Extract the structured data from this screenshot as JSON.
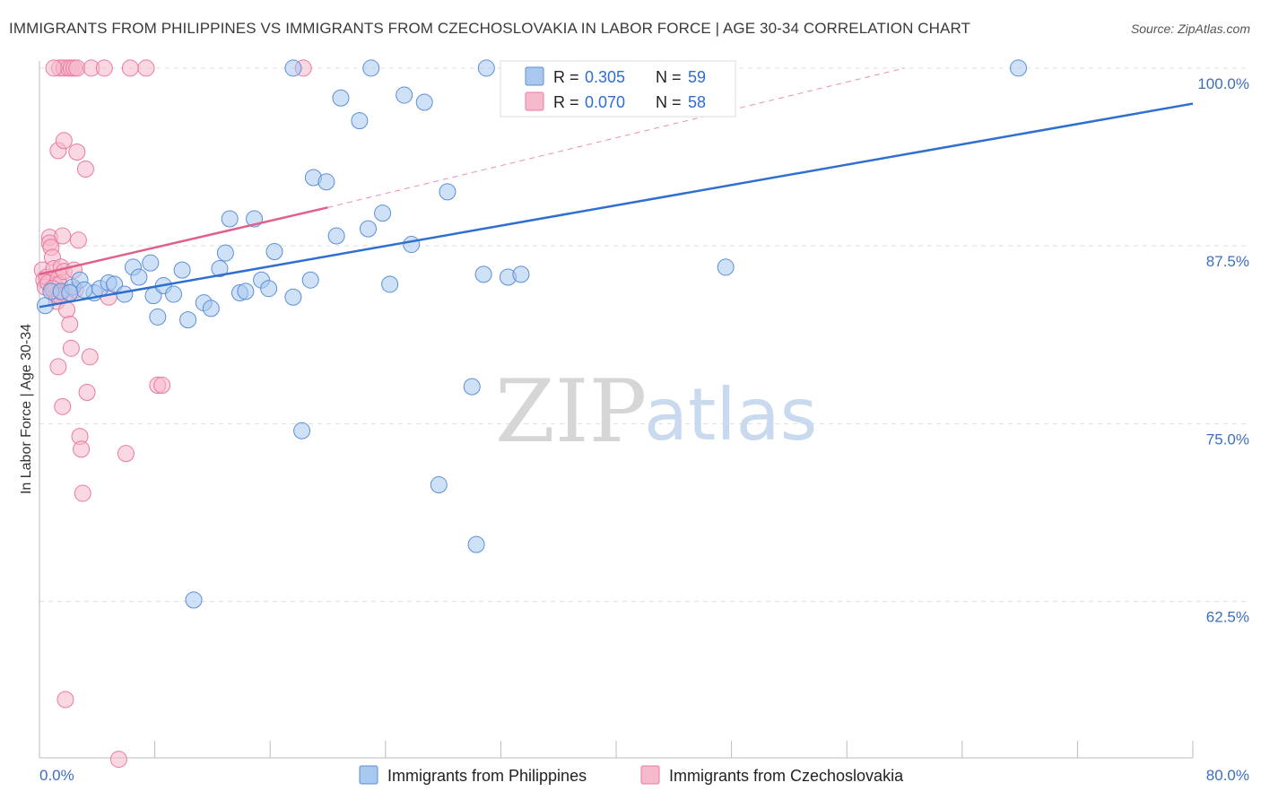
{
  "title": "IMMIGRANTS FROM PHILIPPINES VS IMMIGRANTS FROM CZECHOSLOVAKIA IN LABOR FORCE | AGE 30-34 CORRELATION CHART",
  "source": "Source: ZipAtlas.com",
  "watermark": {
    "zip": "ZIP",
    "atlas": "atlas"
  },
  "legend": {
    "series1": {
      "r_label": "R = ",
      "r_value": "0.305",
      "n_label": "N = ",
      "n_value": "59"
    },
    "series2": {
      "r_label": "R = ",
      "r_value": "0.070",
      "n_label": "N = ",
      "n_value": "58"
    }
  },
  "colors": {
    "blue_fill": "#a8c8f0",
    "blue_stroke": "#5b8fd6",
    "blue_line": "#2e6fd0",
    "pink_fill": "#f6b8cb",
    "pink_stroke": "#e97aa0",
    "pink_line": "#e0608a",
    "grid": "#dddddd",
    "axis": "#bbbbbb"
  },
  "chart_data": {
    "type": "scatter",
    "title": "IMMIGRANTS FROM PHILIPPINES VS IMMIGRANTS FROM CZECHOSLOVAKIA IN LABOR FORCE | AGE 30-34 CORRELATION CHART",
    "xlabel": "",
    "ylabel": "In Labor Force | Age 30-34",
    "xlim": [
      0,
      80
    ],
    "ylim": [
      51.5,
      100.5
    ],
    "x_tick_labels": [
      "0.0%",
      "80.0%"
    ],
    "y_ticks": [
      62.5,
      75.0,
      87.5,
      100.0
    ],
    "y_tick_labels": [
      "62.5%",
      "75.0%",
      "87.5%",
      "100.0%"
    ],
    "series": [
      {
        "name": "Immigrants from Philippines",
        "trend": {
          "x": [
            0,
            80
          ],
          "y": [
            83.2,
            97.5
          ],
          "style": "solid"
        },
        "points": [
          [
            0.4,
            83.3
          ],
          [
            0.8,
            84.3
          ],
          [
            1.5,
            84.3
          ],
          [
            2.3,
            84.6
          ],
          [
            2.8,
            85.1
          ],
          [
            3.8,
            84.2
          ],
          [
            4.2,
            84.5
          ],
          [
            4.8,
            84.9
          ],
          [
            5.2,
            84.8
          ],
          [
            5.9,
            84.1
          ],
          [
            6.5,
            86.0
          ],
          [
            6.9,
            85.3
          ],
          [
            7.7,
            86.3
          ],
          [
            7.9,
            84.0
          ],
          [
            8.2,
            82.5
          ],
          [
            8.6,
            84.7
          ],
          [
            9.3,
            84.1
          ],
          [
            9.9,
            85.8
          ],
          [
            10.3,
            82.3
          ],
          [
            11.4,
            83.5
          ],
          [
            11.9,
            83.1
          ],
          [
            12.5,
            85.9
          ],
          [
            12.9,
            87.0
          ],
          [
            13.2,
            89.4
          ],
          [
            13.9,
            84.2
          ],
          [
            14.3,
            84.3
          ],
          [
            14.9,
            89.4
          ],
          [
            15.4,
            85.1
          ],
          [
            15.9,
            84.5
          ],
          [
            16.3,
            87.1
          ],
          [
            17.6,
            83.9
          ],
          [
            18.8,
            85.1
          ],
          [
            19.0,
            92.3
          ],
          [
            19.9,
            92.0
          ],
          [
            20.6,
            88.2
          ],
          [
            20.9,
            97.9
          ],
          [
            22.2,
            96.3
          ],
          [
            22.8,
            88.7
          ],
          [
            23.8,
            89.8
          ],
          [
            24.3,
            84.8
          ],
          [
            25.3,
            98.1
          ],
          [
            25.8,
            87.6
          ],
          [
            26.7,
            97.6
          ],
          [
            28.3,
            91.3
          ],
          [
            30.8,
            85.5
          ],
          [
            32.5,
            85.3
          ],
          [
            33.4,
            85.5
          ],
          [
            47.6,
            86.0
          ],
          [
            17.6,
            100.0
          ],
          [
            23.0,
            100.0
          ],
          [
            31.0,
            100.0
          ],
          [
            67.9,
            100.0
          ],
          [
            18.2,
            74.5
          ],
          [
            27.7,
            70.7
          ],
          [
            30.0,
            77.6
          ],
          [
            30.3,
            66.5
          ],
          [
            10.7,
            62.6
          ],
          [
            3.1,
            84.4
          ],
          [
            2.1,
            84.2
          ]
        ]
      },
      {
        "name": "Immigrants from Czechoslovakia",
        "trend": {
          "x": [
            0,
            20.0
          ],
          "y": [
            85.5,
            90.2
          ],
          "style": "solid",
          "extension": {
            "x": [
              20.0,
              60.0
            ],
            "y": [
              90.2,
              100.0
            ],
            "style": "dashed"
          }
        },
        "points": [
          [
            0.2,
            85.8
          ],
          [
            0.3,
            85.1
          ],
          [
            0.4,
            84.6
          ],
          [
            0.5,
            85.3
          ],
          [
            0.6,
            84.9
          ],
          [
            0.7,
            88.1
          ],
          [
            0.7,
            87.7
          ],
          [
            0.8,
            87.4
          ],
          [
            0.9,
            86.7
          ],
          [
            1.0,
            85.9
          ],
          [
            1.0,
            84.3
          ],
          [
            1.1,
            84.7
          ],
          [
            1.2,
            84.0
          ],
          [
            1.2,
            83.6
          ],
          [
            1.3,
            85.2
          ],
          [
            1.4,
            84.8
          ],
          [
            1.5,
            84.2
          ],
          [
            1.5,
            86.0
          ],
          [
            1.6,
            88.2
          ],
          [
            1.7,
            85.7
          ],
          [
            1.8,
            84.1
          ],
          [
            1.9,
            83.0
          ],
          [
            2.1,
            82.0
          ],
          [
            2.2,
            80.3
          ],
          [
            2.4,
            85.8
          ],
          [
            2.5,
            84.4
          ],
          [
            2.7,
            87.9
          ],
          [
            2.8,
            74.1
          ],
          [
            2.9,
            73.2
          ],
          [
            3.0,
            70.1
          ],
          [
            1.3,
            79.0
          ],
          [
            1.6,
            76.2
          ],
          [
            3.3,
            77.2
          ],
          [
            3.5,
            79.7
          ],
          [
            4.8,
            83.9
          ],
          [
            6.0,
            72.9
          ],
          [
            8.2,
            77.7
          ],
          [
            8.5,
            77.7
          ],
          [
            1.3,
            94.2
          ],
          [
            1.7,
            94.9
          ],
          [
            2.6,
            94.1
          ],
          [
            3.2,
            92.9
          ],
          [
            1.4,
            100.0
          ],
          [
            1.7,
            100.0
          ],
          [
            2.0,
            100.0
          ],
          [
            2.2,
            100.0
          ],
          [
            2.4,
            100.0
          ],
          [
            2.6,
            100.0
          ],
          [
            3.6,
            100.0
          ],
          [
            4.5,
            100.0
          ],
          [
            6.3,
            100.0
          ],
          [
            7.4,
            100.0
          ],
          [
            18.3,
            100.0
          ],
          [
            1.0,
            100.0
          ],
          [
            1.8,
            55.6
          ],
          [
            5.5,
            51.4
          ],
          [
            0.9,
            84.5
          ],
          [
            1.4,
            84.0
          ]
        ]
      }
    ]
  }
}
